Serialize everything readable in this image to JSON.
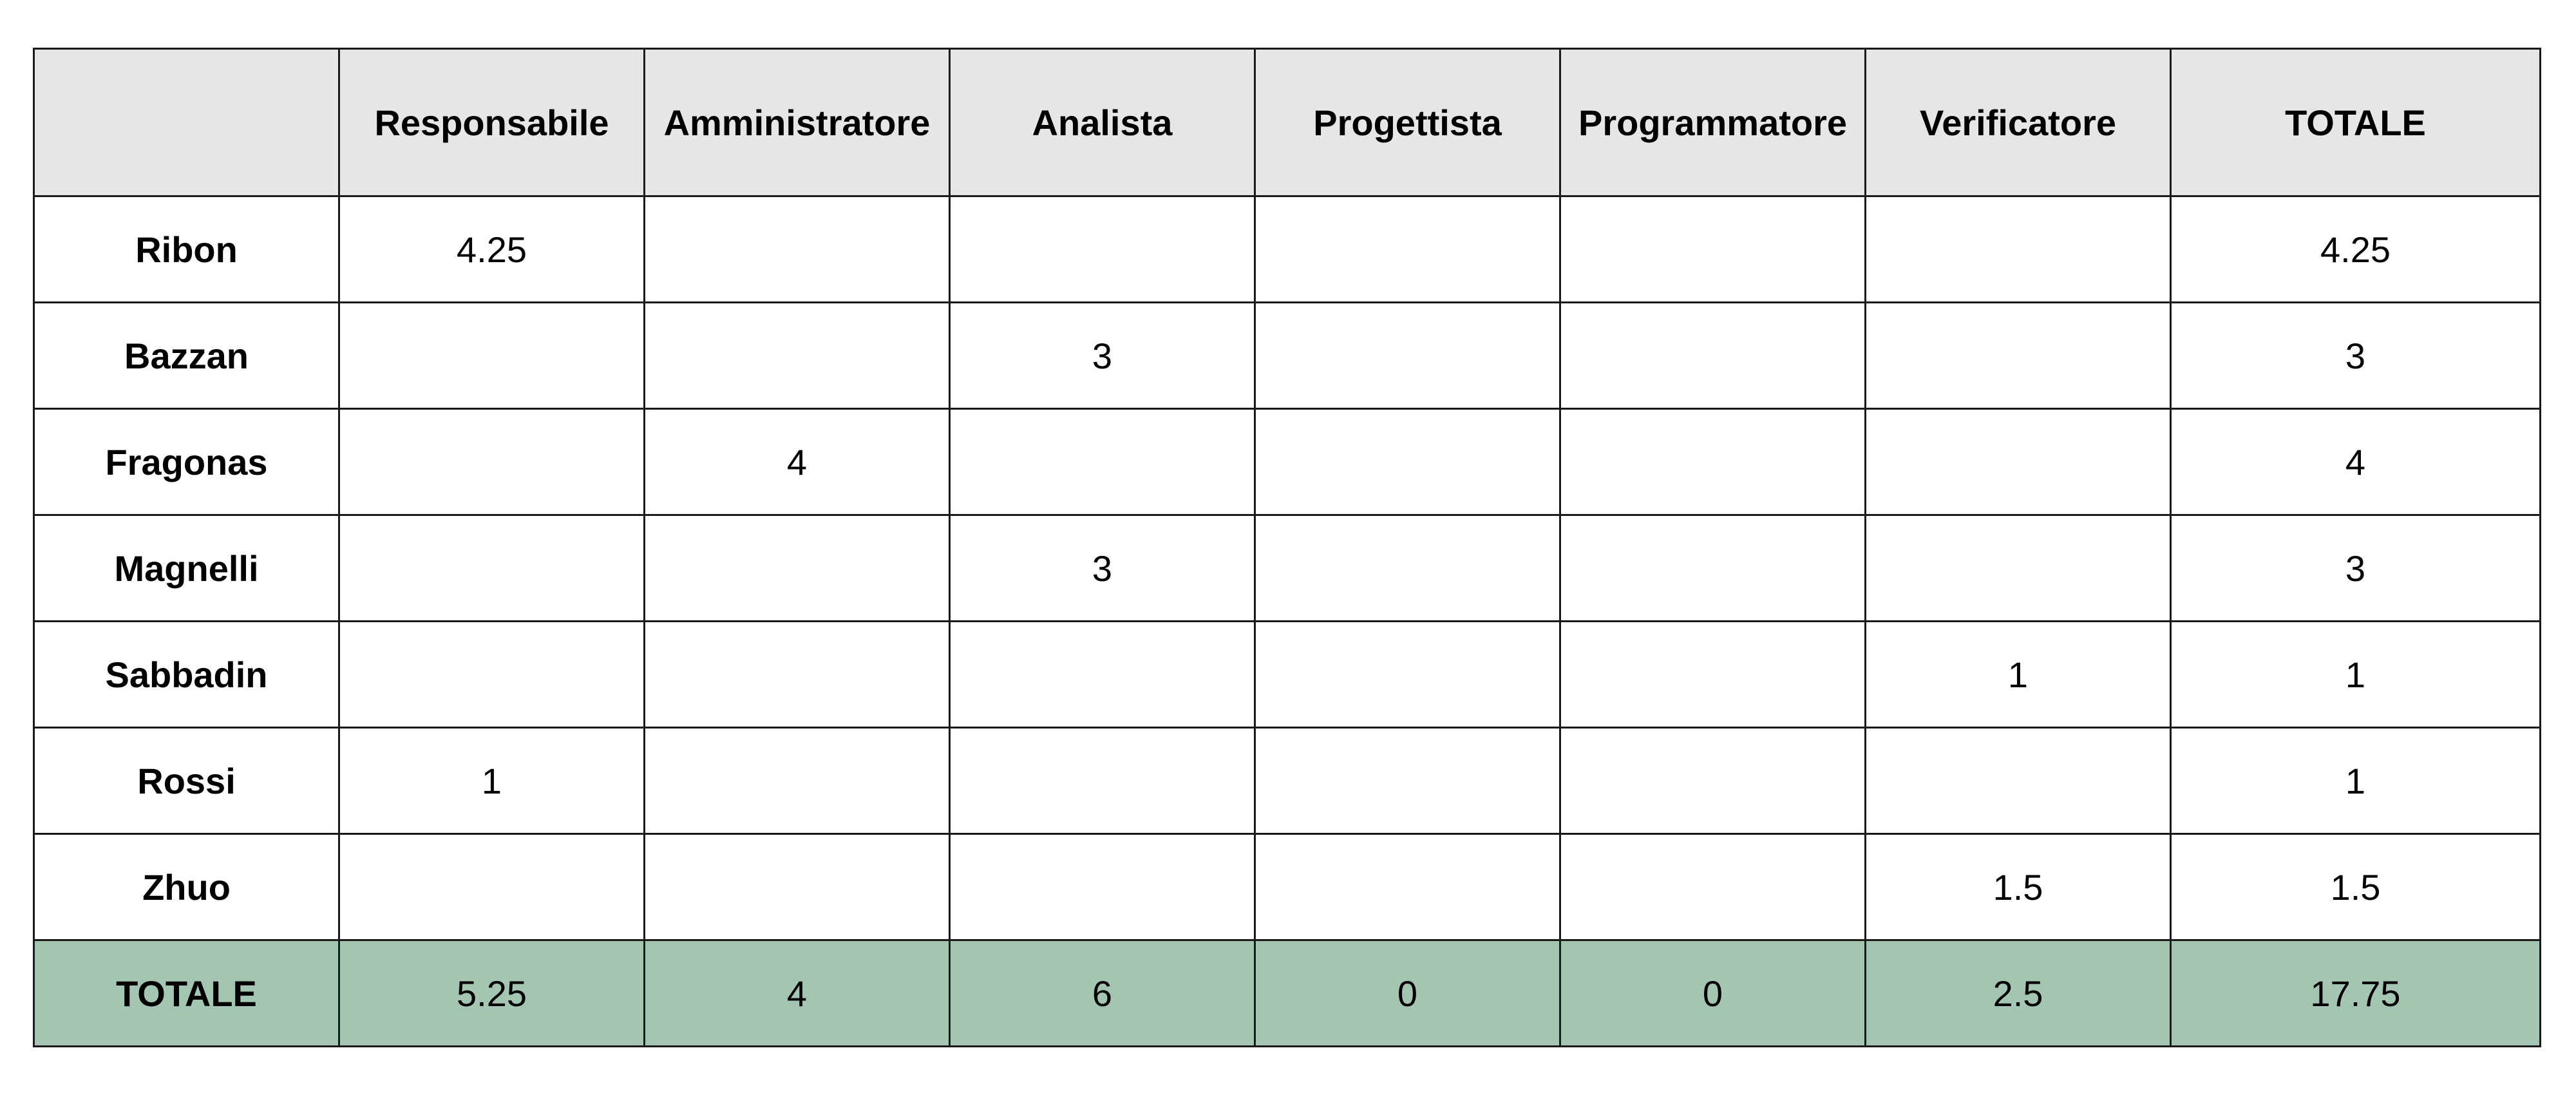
{
  "colors": {
    "header_bg": "#e6e6e6",
    "totals_bg": "#a5c5b3",
    "border": "#1a1a1a"
  },
  "table": {
    "corner": "",
    "headers": [
      "Responsabile",
      "Amministratore",
      "Analista",
      "Progettista",
      "Programmatore",
      "Verificatore",
      "TOTALE"
    ],
    "rows": [
      {
        "name": "Ribon",
        "cells": [
          "4.25",
          "",
          "",
          "",
          "",
          "",
          "4.25"
        ]
      },
      {
        "name": "Bazzan",
        "cells": [
          "",
          "",
          "3",
          "",
          "",
          "",
          "3"
        ]
      },
      {
        "name": "Fragonas",
        "cells": [
          "",
          "4",
          "",
          "",
          "",
          "",
          "4"
        ]
      },
      {
        "name": "Magnelli",
        "cells": [
          "",
          "",
          "3",
          "",
          "",
          "",
          "3"
        ]
      },
      {
        "name": "Sabbadin",
        "cells": [
          "",
          "",
          "",
          "",
          "",
          "1",
          "1"
        ]
      },
      {
        "name": "Rossi",
        "cells": [
          "1",
          "",
          "",
          "",
          "",
          "",
          "1"
        ]
      },
      {
        "name": "Zhuo",
        "cells": [
          "",
          "",
          "",
          "",
          "",
          "1.5",
          "1.5"
        ]
      }
    ],
    "totals": {
      "name": "TOTALE",
      "cells": [
        "5.25",
        "4",
        "6",
        "0",
        "0",
        "2.5",
        "17.75"
      ]
    }
  }
}
